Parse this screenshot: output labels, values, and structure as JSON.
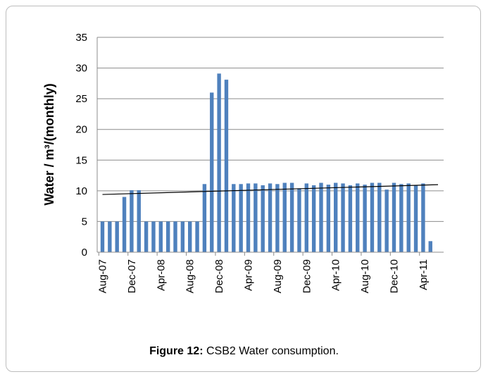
{
  "caption": {
    "label": "Figure 12:",
    "text": "CSB2 Water consumption."
  },
  "chart_data": {
    "type": "bar",
    "title": "",
    "xlabel": "",
    "ylabel": "Water / m³/(monthly)",
    "ylim": [
      0,
      35
    ],
    "yticks": [
      0,
      5,
      10,
      15,
      20,
      25,
      30,
      35
    ],
    "grid": true,
    "bar_color": "#4f81bd",
    "trendline": {
      "type": "linear",
      "start": 9.4,
      "end": 11.0,
      "color": "#000000"
    },
    "categories": [
      "Aug-07",
      "Sep-07",
      "Oct-07",
      "Nov-07",
      "Dec-07",
      "Jan-08",
      "Feb-08",
      "Mar-08",
      "Apr-08",
      "May-08",
      "Jun-08",
      "Jul-08",
      "Aug-08",
      "Sep-08",
      "Oct-08",
      "Nov-08",
      "Dec-08",
      "Jan-09",
      "Feb-09",
      "Mar-09",
      "Apr-09",
      "May-09",
      "Jun-09",
      "Jul-09",
      "Aug-09",
      "Sep-09",
      "Oct-09",
      "Nov-09",
      "Dec-09",
      "Jan-10",
      "Feb-10",
      "Mar-10",
      "Apr-10",
      "May-10",
      "Jun-10",
      "Jul-10",
      "Aug-10",
      "Sep-10",
      "Oct-10",
      "Nov-10",
      "Dec-10",
      "Jan-11",
      "Feb-11",
      "Mar-11",
      "Apr-11",
      "May-11"
    ],
    "values": [
      5,
      5,
      5,
      9,
      10.1,
      10.1,
      5,
      5,
      5,
      5,
      5,
      5,
      5,
      5,
      11.1,
      26,
      29.1,
      28.1,
      11.1,
      11.1,
      11.2,
      11.2,
      10.9,
      11.2,
      11.1,
      11.3,
      11.3,
      10.4,
      11.2,
      10.9,
      11.3,
      11,
      11.3,
      11.2,
      10.9,
      11.2,
      11,
      11.3,
      11.3,
      10.2,
      11.3,
      11.1,
      11.2,
      10.9,
      11.2,
      1.8
    ],
    "tick_label_categories": [
      "Aug-07",
      "Dec-07",
      "Apr-08",
      "Aug-08",
      "Dec-08",
      "Apr-09",
      "Aug-09",
      "Dec-09",
      "Apr-10",
      "Aug-10",
      "Dec-10",
      "Apr-11"
    ]
  }
}
